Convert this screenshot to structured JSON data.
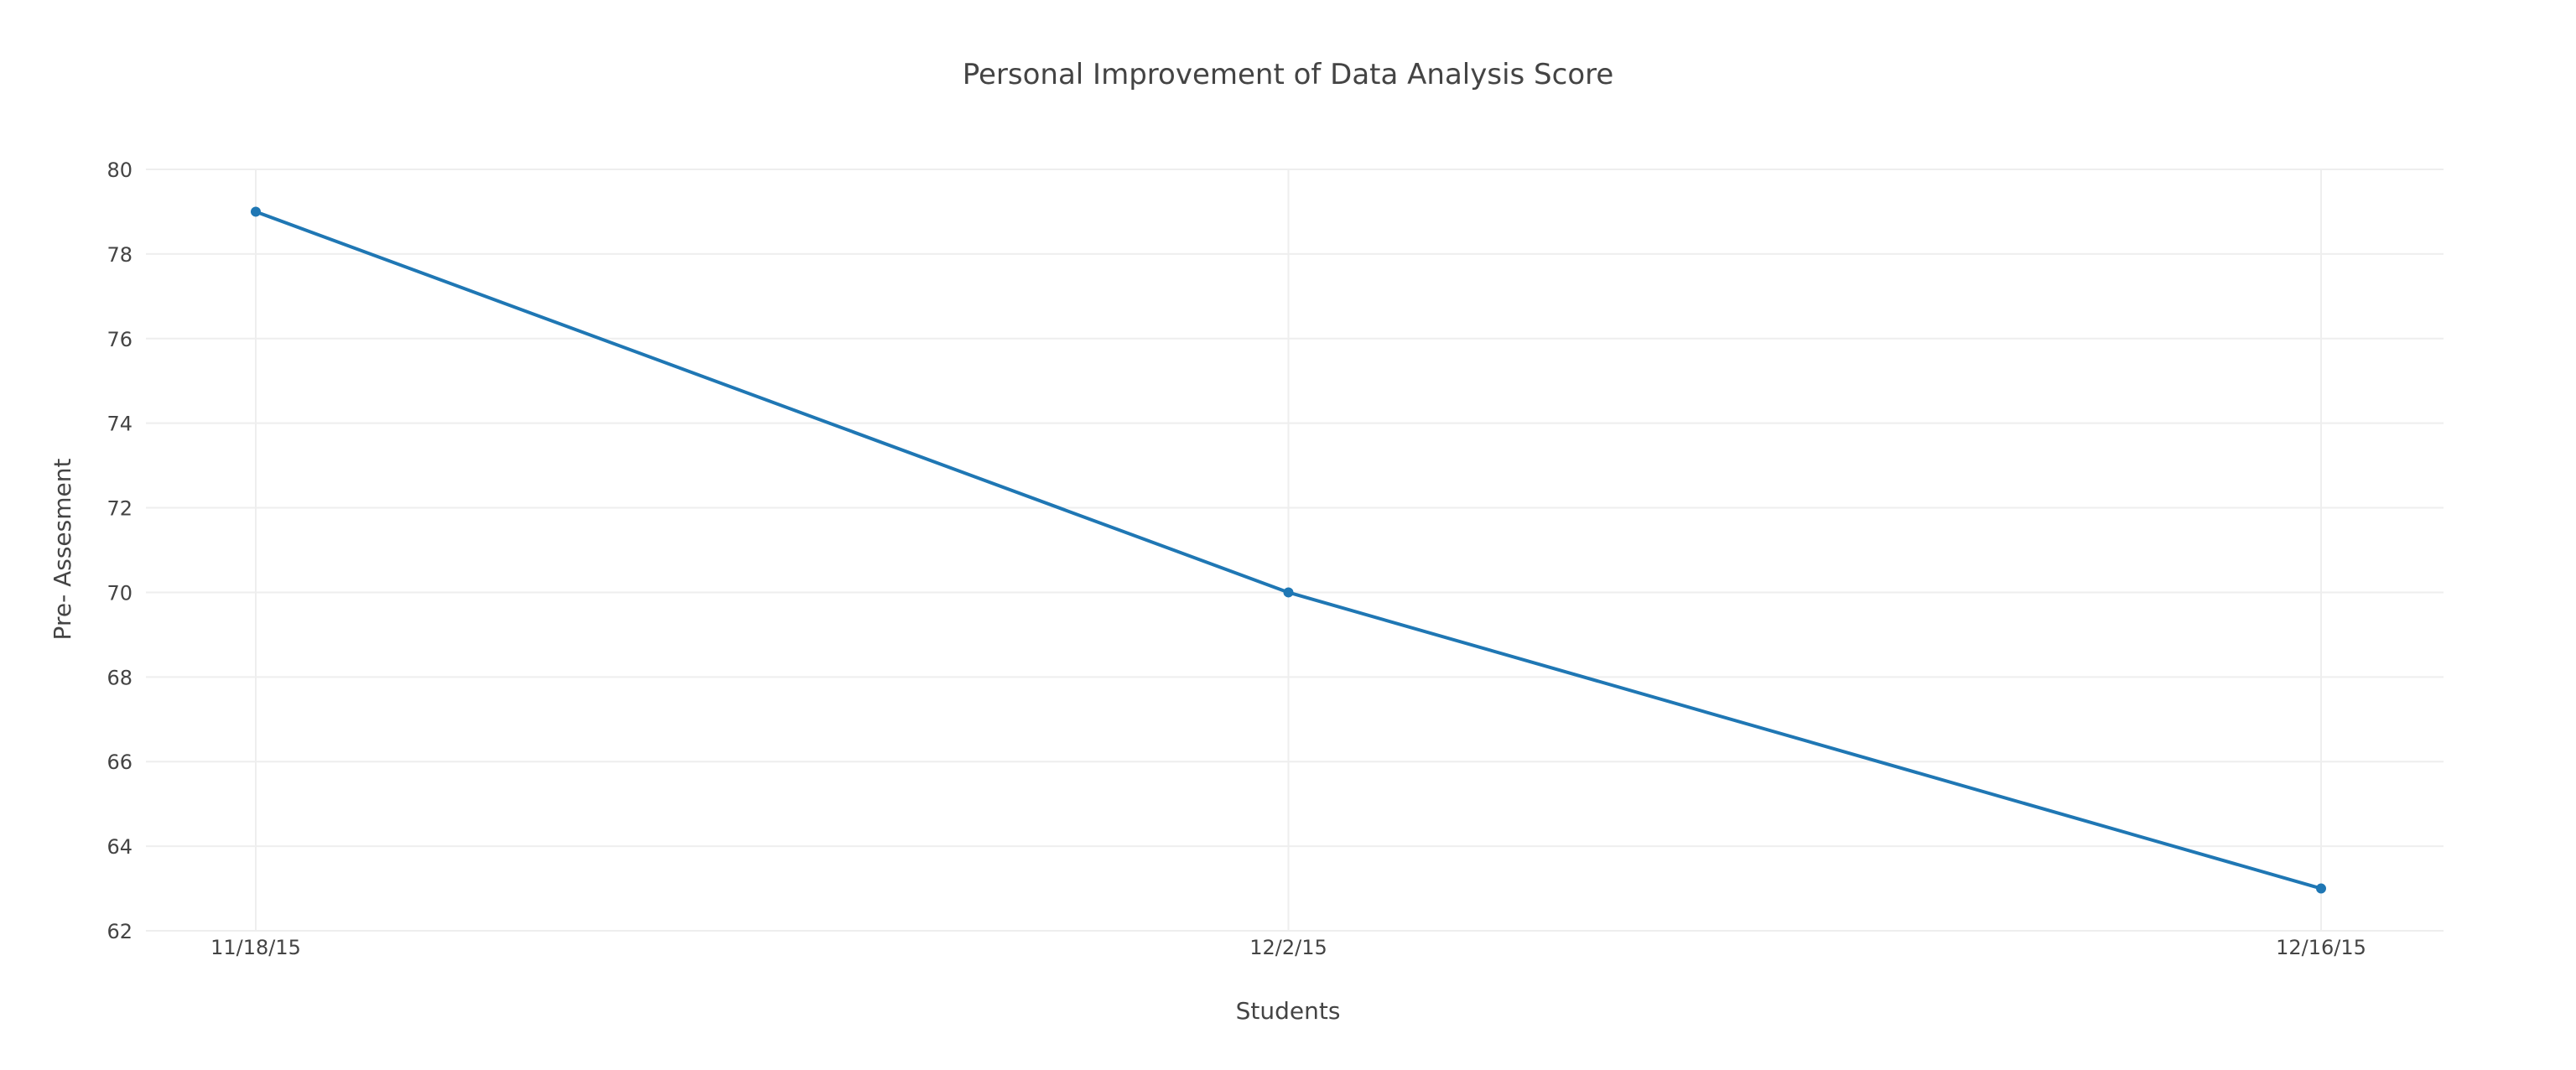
{
  "chart_data": {
    "type": "line",
    "title": "Personal Improvement of Data Analysis Score",
    "xlabel": "Students",
    "ylabel": "Pre- Assesment",
    "categories": [
      "11/18/15",
      "12/2/15",
      "12/16/15"
    ],
    "series": [
      {
        "values": [
          79,
          70,
          63
        ],
        "color": "#1f77b4"
      }
    ],
    "ylim": [
      62,
      80
    ],
    "yticks": [
      62,
      64,
      66,
      68,
      70,
      72,
      74,
      76,
      78,
      80
    ],
    "grid": true,
    "markers": true
  }
}
